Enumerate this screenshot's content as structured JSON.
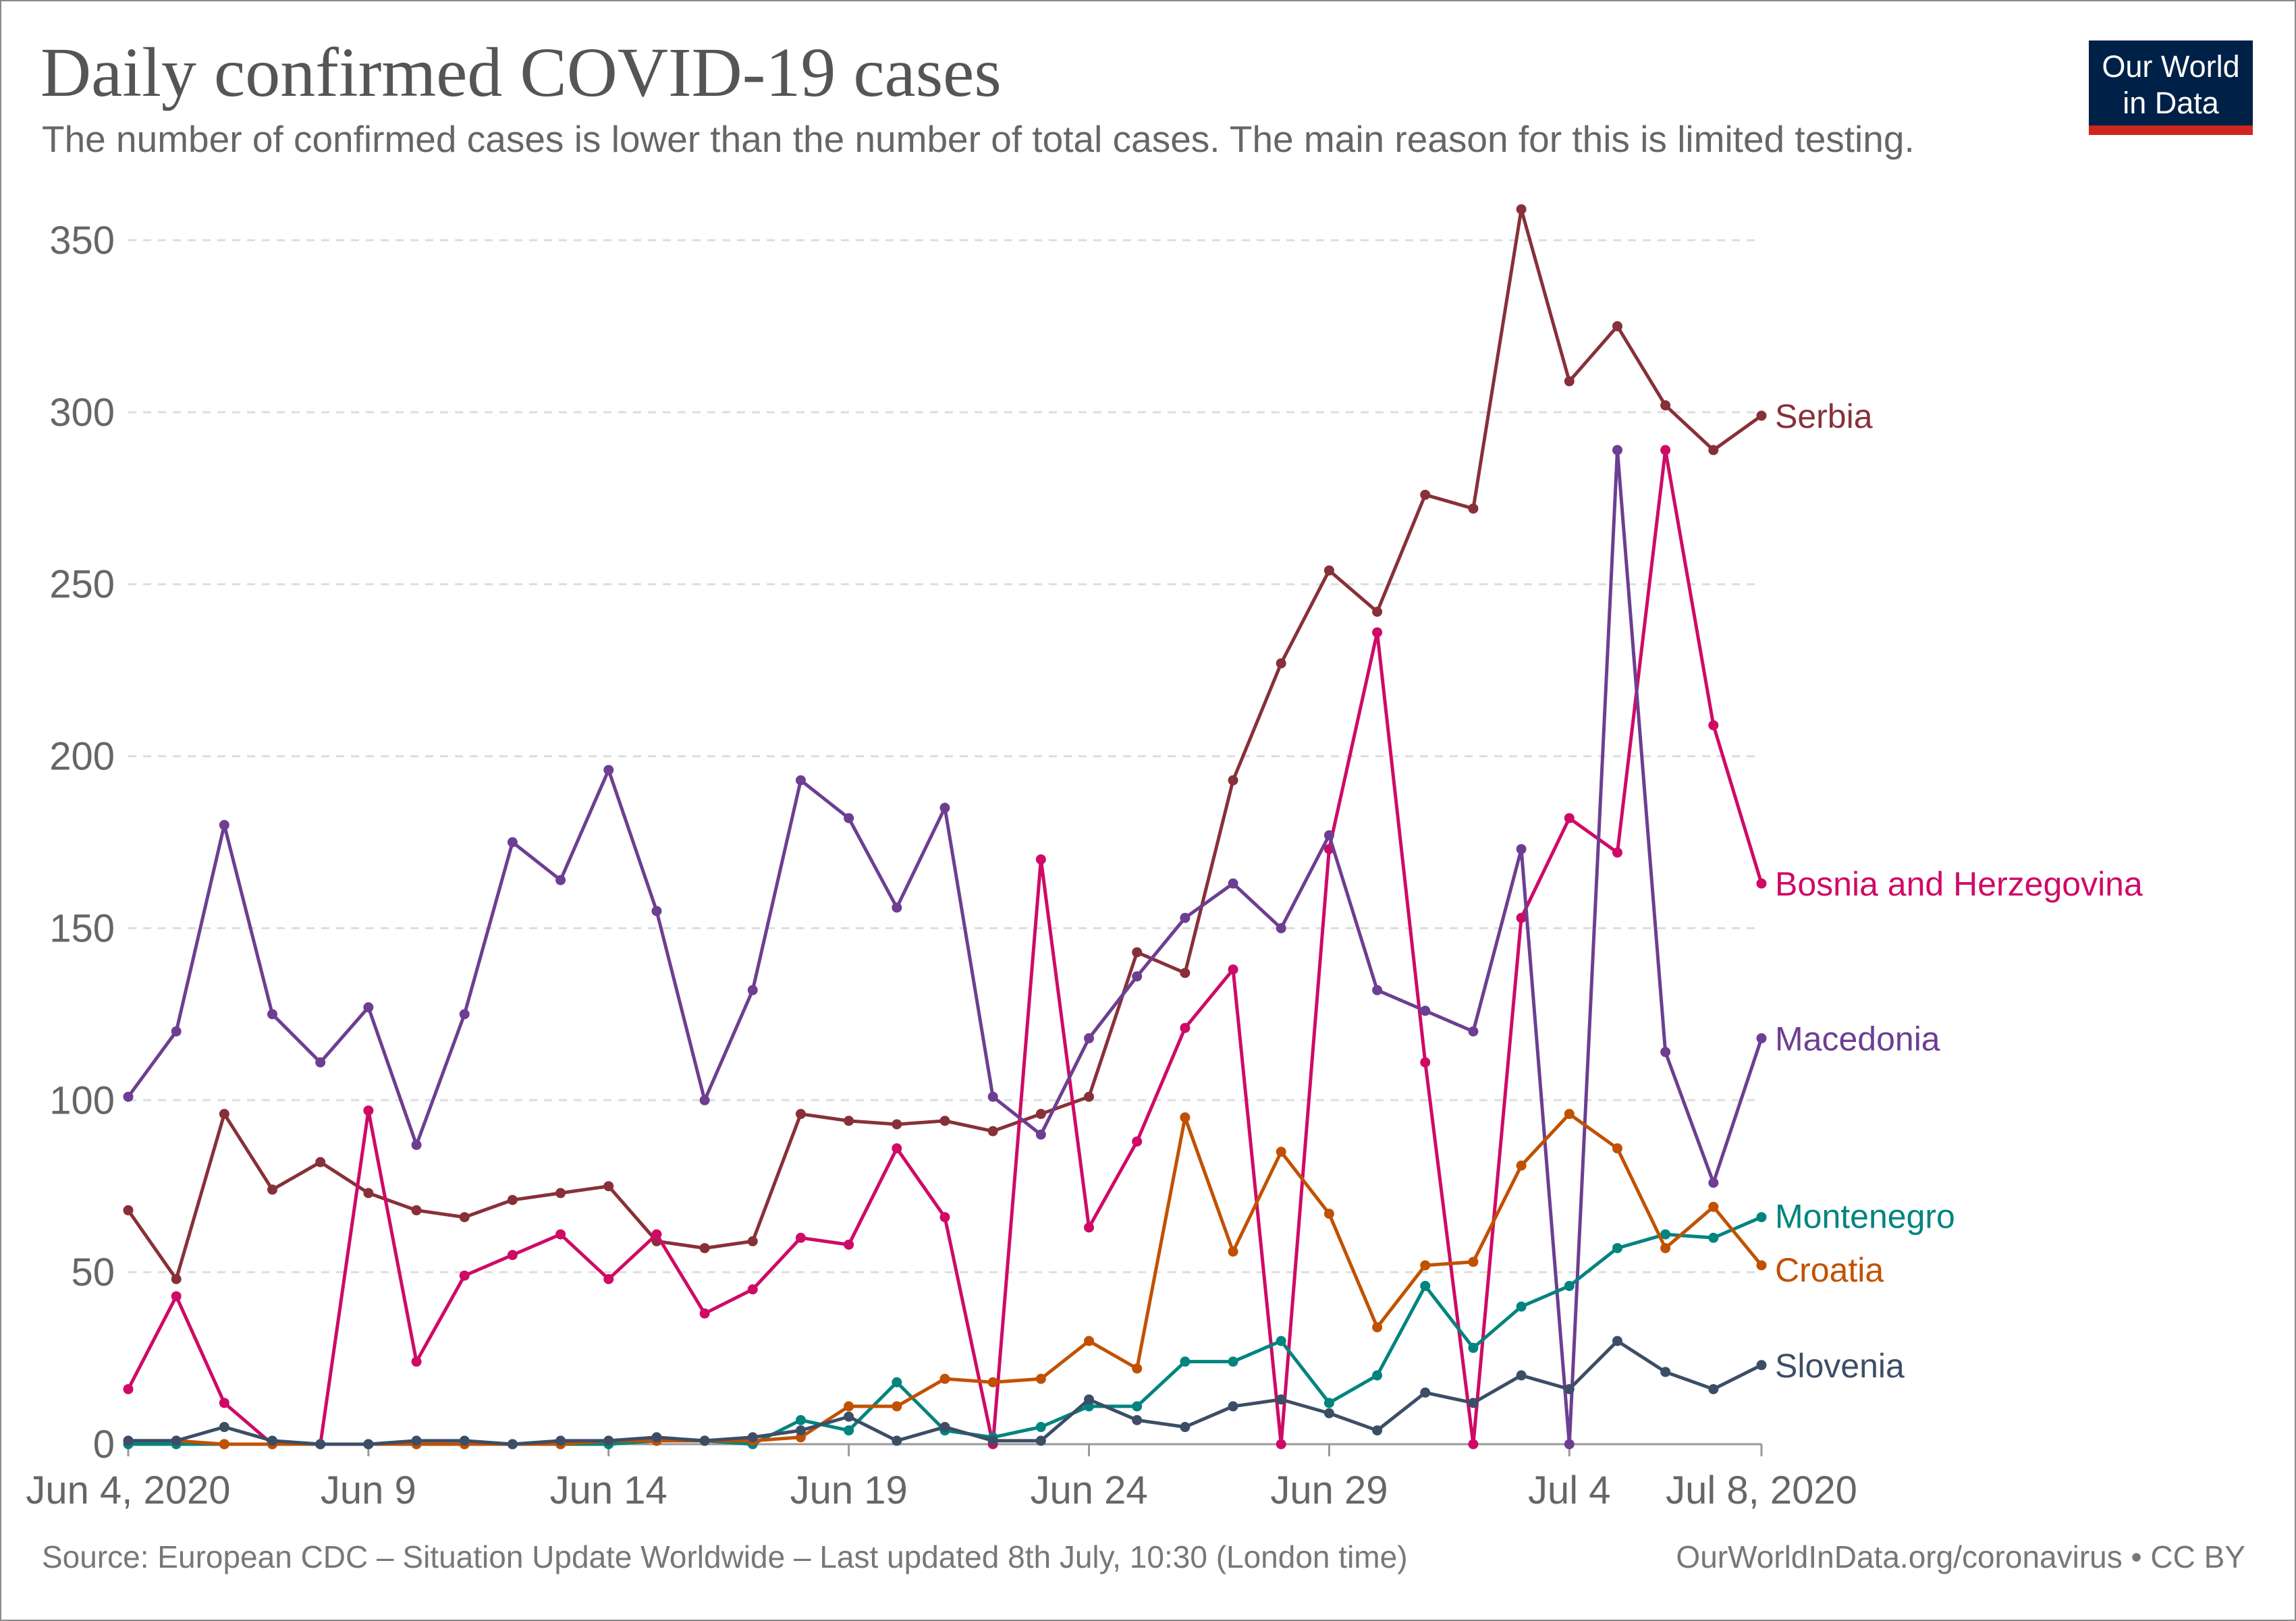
{
  "header": {
    "title": "Daily confirmed COVID-19 cases",
    "subtitle": "The number of confirmed cases is lower than the number of total cases. The main reason for this is limited testing.",
    "logo_line1": "Our World",
    "logo_line2": "in Data"
  },
  "footer": {
    "source": "Source: European CDC – Situation Update Worldwide – Last updated 8th July, 10:30 (London time)",
    "site": "OurWorldInData.org/coronavirus • CC BY"
  },
  "colors": {
    "grid": "#dddddd",
    "axis": "#999999"
  },
  "chart_data": {
    "type": "line",
    "title": "Daily confirmed COVID-19 cases",
    "xlabel": "",
    "ylabel": "",
    "ylim": [
      0,
      360
    ],
    "yticks": [
      0,
      50,
      100,
      150,
      200,
      250,
      300,
      350
    ],
    "x": [
      "2020-06-04",
      "2020-06-05",
      "2020-06-06",
      "2020-06-07",
      "2020-06-08",
      "2020-06-09",
      "2020-06-10",
      "2020-06-11",
      "2020-06-12",
      "2020-06-13",
      "2020-06-14",
      "2020-06-15",
      "2020-06-16",
      "2020-06-17",
      "2020-06-18",
      "2020-06-19",
      "2020-06-20",
      "2020-06-21",
      "2020-06-22",
      "2020-06-23",
      "2020-06-24",
      "2020-06-25",
      "2020-06-26",
      "2020-06-27",
      "2020-06-28",
      "2020-06-29",
      "2020-06-30",
      "2020-07-01",
      "2020-07-02",
      "2020-07-03",
      "2020-07-04",
      "2020-07-05",
      "2020-07-06",
      "2020-07-07",
      "2020-07-08"
    ],
    "xticks": [
      {
        "index": 0,
        "label": "Jun 4, 2020"
      },
      {
        "index": 5,
        "label": "Jun 9"
      },
      {
        "index": 10,
        "label": "Jun 14"
      },
      {
        "index": 15,
        "label": "Jun 19"
      },
      {
        "index": 20,
        "label": "Jun 24"
      },
      {
        "index": 25,
        "label": "Jun 29"
      },
      {
        "index": 30,
        "label": "Jul 4"
      },
      {
        "index": 34,
        "label": "Jul 8, 2020"
      }
    ],
    "grid": true,
    "legend": "right (labels at line ends)",
    "series": [
      {
        "name": "Serbia",
        "color": "#883039",
        "values": [
          68,
          48,
          96,
          74,
          82,
          73,
          68,
          66,
          71,
          73,
          75,
          59,
          57,
          59,
          96,
          94,
          93,
          94,
          91,
          96,
          101,
          143,
          137,
          193,
          227,
          254,
          242,
          276,
          272,
          359,
          309,
          325,
          302,
          289,
          299
        ]
      },
      {
        "name": "Bosnia and Herzegovina",
        "color": "#cf0a66",
        "values": [
          16,
          43,
          12,
          0,
          0,
          97,
          24,
          49,
          55,
          61,
          48,
          61,
          38,
          45,
          60,
          58,
          86,
          66,
          0,
          170,
          63,
          88,
          121,
          138,
          0,
          173,
          236,
          111,
          0,
          153,
          182,
          172,
          289,
          209,
          163
        ]
      },
      {
        "name": "Macedonia",
        "color": "#6d3e91",
        "values": [
          101,
          120,
          180,
          125,
          111,
          127,
          87,
          125,
          175,
          164,
          196,
          155,
          100,
          132,
          193,
          182,
          156,
          185,
          101,
          90,
          118,
          136,
          153,
          163,
          150,
          177,
          132,
          126,
          120,
          173,
          0,
          289,
          114,
          76,
          118
        ]
      },
      {
        "name": "Montenegro",
        "color": "#00847e",
        "values": [
          0,
          0,
          0,
          0,
          0,
          0,
          0,
          0,
          0,
          0,
          0,
          1,
          1,
          0,
          7,
          4,
          18,
          4,
          2,
          5,
          11,
          11,
          24,
          24,
          30,
          12,
          20,
          46,
          28,
          40,
          46,
          57,
          61,
          60,
          66
        ]
      },
      {
        "name": "Croatia",
        "color": "#c15100",
        "values": [
          1,
          1,
          0,
          0,
          0,
          0,
          0,
          0,
          0,
          0,
          1,
          1,
          1,
          1,
          2,
          11,
          11,
          19,
          18,
          19,
          30,
          22,
          95,
          56,
          85,
          67,
          34,
          52,
          53,
          81,
          96,
          86,
          57,
          69,
          52
        ]
      },
      {
        "name": "Slovenia",
        "color": "#3c4e66",
        "values": [
          1,
          1,
          5,
          1,
          0,
          0,
          1,
          1,
          0,
          1,
          1,
          2,
          1,
          2,
          4,
          8,
          1,
          5,
          1,
          1,
          13,
          7,
          5,
          11,
          13,
          9,
          4,
          15,
          12,
          20,
          16,
          30,
          21,
          16,
          23
        ]
      }
    ]
  }
}
